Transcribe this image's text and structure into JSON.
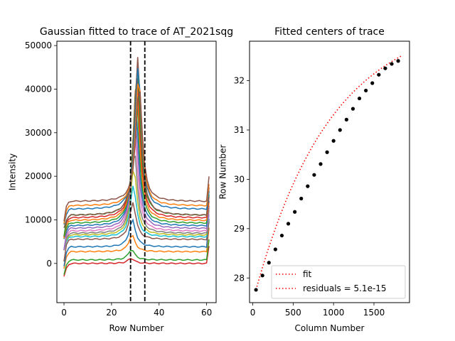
{
  "chart_data": [
    {
      "type": "line",
      "title": "Gaussian fitted to trace of AT_2021sqg",
      "xlabel": "Row Number",
      "ylabel": "Intensity",
      "xlim": [
        -3,
        64
      ],
      "ylim": [
        -9000,
        51000
      ],
      "xticks": [
        0,
        20,
        40,
        60
      ],
      "yticks": [
        0,
        10000,
        20000,
        30000,
        40000,
        50000
      ],
      "vlines": [
        28,
        34
      ],
      "profile": {
        "rows": 62,
        "center_start": 28.2,
        "center_end": 31.6,
        "width": 1.6,
        "edge_spike": 4000
      },
      "series": [
        {
          "color": "#d62728",
          "baseline": 0,
          "peak": 1200
        },
        {
          "color": "#2ca02c",
          "baseline": 800,
          "peak": 3200
        },
        {
          "color": "#ff7f0e",
          "baseline": 2700,
          "peak": 6500
        },
        {
          "color": "#1f77b4",
          "baseline": 3800,
          "peak": 10000
        },
        {
          "color": "#8c564b",
          "baseline": 5500,
          "peak": 14000
        },
        {
          "color": "#17becf",
          "baseline": 6100,
          "peak": 18000
        },
        {
          "color": "#bcbd22",
          "baseline": 6500,
          "peak": 22000
        },
        {
          "color": "#7f7f7f",
          "baseline": 6900,
          "peak": 26000
        },
        {
          "color": "#e377c2",
          "baseline": 7400,
          "peak": 30000
        },
        {
          "color": "#9467bd",
          "baseline": 8000,
          "peak": 34000
        },
        {
          "color": "#1f77b4",
          "baseline": 8600,
          "peak": 37000
        },
        {
          "color": "#2ca02c",
          "baseline": 9200,
          "peak": 40000
        },
        {
          "color": "#ff7f0e",
          "baseline": 9800,
          "peak": 42000
        },
        {
          "color": "#d62728",
          "baseline": 10400,
          "peak": 44000
        },
        {
          "color": "#2ca02c",
          "baseline": 11000,
          "peak": 46000
        },
        {
          "color": "#8c564b",
          "baseline": 11000,
          "peak": 47500
        },
        {
          "color": "#1f77b4",
          "baseline": 12400,
          "peak": 45500
        },
        {
          "color": "#ff7f0e",
          "baseline": 13200,
          "peak": 43000
        },
        {
          "color": "#8c564b",
          "baseline": 14200,
          "peak": 41000
        }
      ]
    },
    {
      "type": "scatter",
      "title": "Fitted centers of trace",
      "xlabel": "Column Number",
      "ylabel": "Row Number",
      "xlim": [
        -40,
        1940
      ],
      "ylim": [
        27.5,
        32.8
      ],
      "xticks": [
        0,
        500,
        1000,
        1500
      ],
      "yticks": [
        28,
        29,
        30,
        31,
        32
      ],
      "points": {
        "x": [
          40,
          120,
          200,
          280,
          360,
          440,
          520,
          600,
          680,
          760,
          840,
          920,
          1000,
          1080,
          1160,
          1240,
          1320,
          1400,
          1480,
          1560,
          1640,
          1720,
          1800
        ],
        "y": [
          27.76,
          28.05,
          28.31,
          28.58,
          28.86,
          29.1,
          29.34,
          29.61,
          29.86,
          30.09,
          30.31,
          30.55,
          30.78,
          31.0,
          31.21,
          31.43,
          31.64,
          31.8,
          31.95,
          32.12,
          32.25,
          32.34,
          32.4
        ]
      },
      "fit": {
        "x0": 40,
        "x1": 1840,
        "y0": 27.76,
        "y1": 32.5,
        "curvature": 1.9
      },
      "legend": {
        "placement": "lower-right",
        "entries": [
          "fit",
          "residuals = 5.1e-15"
        ]
      }
    }
  ]
}
